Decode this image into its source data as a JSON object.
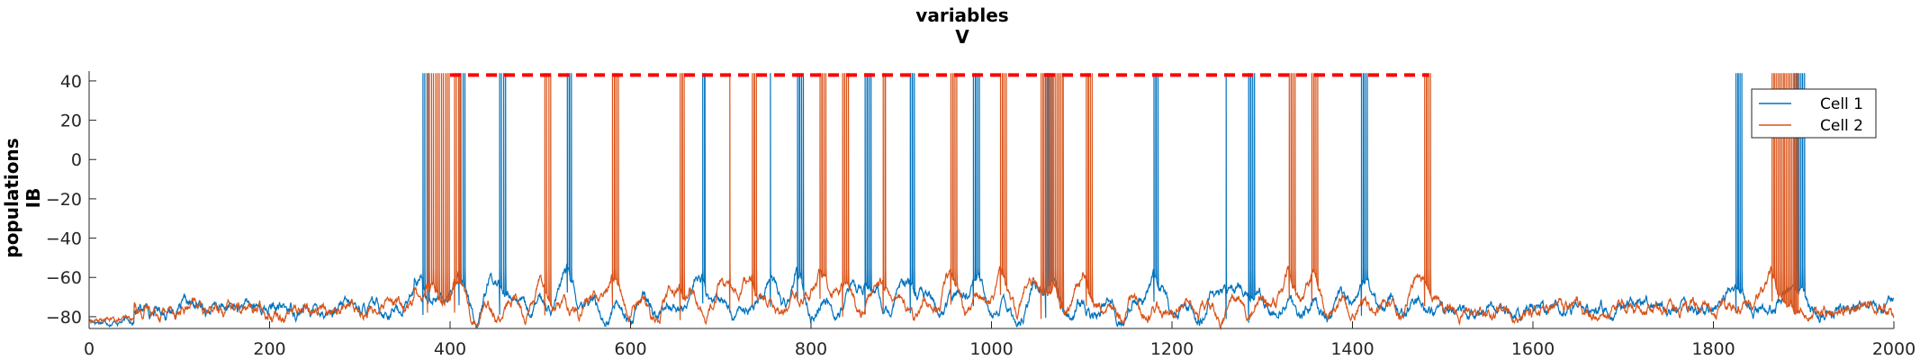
{
  "chart_data": {
    "type": "line",
    "title": "variables",
    "subtitle": "V",
    "ylabel": "populations",
    "ylabel2": "IB",
    "xlabel": "",
    "xlim": [
      0,
      2000
    ],
    "ylim": [
      -86,
      45
    ],
    "xticks": [
      0,
      200,
      400,
      600,
      800,
      1000,
      1200,
      1400,
      1600,
      1800,
      2000
    ],
    "yticks": [
      -80,
      -60,
      -40,
      -20,
      0,
      20,
      40
    ],
    "grid": false,
    "legend_position": "top-right",
    "series": [
      {
        "name": "Cell 1",
        "color": "#0072BD",
        "baseline": -76,
        "burst_times": [
          370,
          410,
          455,
          530,
          680,
          755,
          785,
          860,
          910,
          980,
          1060,
          1180,
          1260,
          1285,
          1410,
          1825,
          1890
        ],
        "burst_spike_counts": [
          4,
          4,
          4,
          3,
          2,
          1,
          4,
          4,
          3,
          4,
          4,
          3,
          1,
          4,
          4,
          4,
          6
        ]
      },
      {
        "name": "Cell 2",
        "color": "#D95319",
        "baseline": -76,
        "burst_times": [
          375,
          405,
          505,
          580,
          655,
          710,
          735,
          810,
          835,
          880,
          955,
          1010,
          1055,
          1105,
          1330,
          1355,
          1480,
          1865
        ],
        "burst_spike_counts": [
          12,
          4,
          4,
          4,
          3,
          1,
          3,
          4,
          4,
          2,
          4,
          4,
          12,
          4,
          4,
          4,
          4,
          14
        ]
      }
    ],
    "reference_line": {
      "type": "dashed",
      "color": "#FF0000",
      "y": 43,
      "x_start": 400,
      "x_end": 1485
    }
  },
  "legend": {
    "items": [
      "Cell 1",
      "Cell 2"
    ]
  }
}
